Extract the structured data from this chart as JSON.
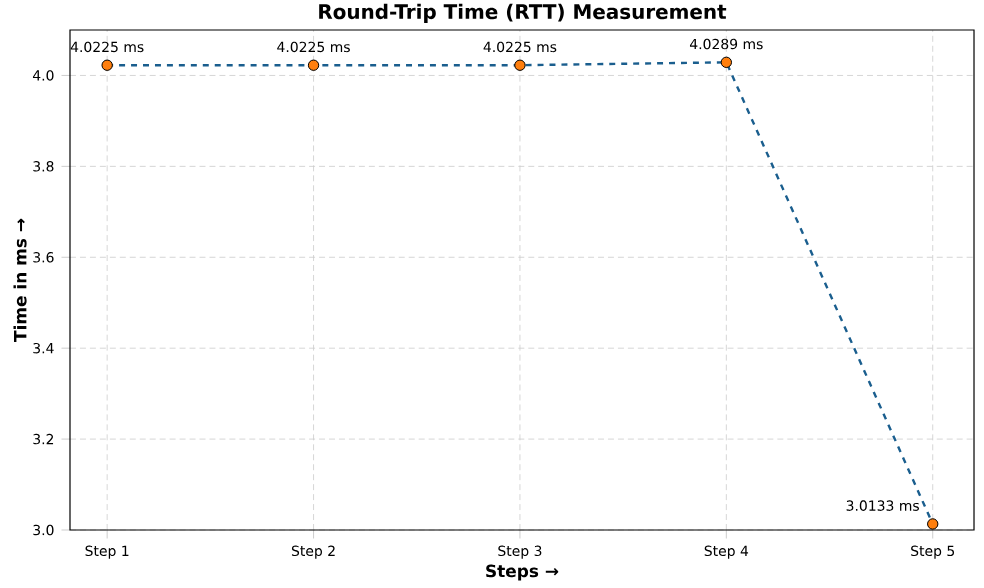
{
  "chart_data": {
    "type": "line",
    "title": "Round-Trip Time (RTT) Measurement",
    "xlabel": "Steps →",
    "ylabel": "Time in ms →",
    "categories": [
      "Step 1",
      "Step 2",
      "Step 3",
      "Step 4",
      "Step 5"
    ],
    "series": [
      {
        "color": "#1a5e8e",
        "colors": [
          "#ff7f0e",
          "#ff7f0e",
          "#ff7f0e",
          "#ff7f0e",
          "#ff7f0e"
        ],
        "values": [
          4.0225,
          4.0225,
          4.0225,
          4.0289,
          3.0133
        ],
        "value_labels": [
          "4.0225 ms",
          "4.0225 ms",
          "4.0225 ms",
          "4.0289 ms",
          "3.0133 ms"
        ]
      }
    ],
    "ylim": [
      3.0,
      4.1
    ],
    "yticks": [
      {
        "value": 3.0,
        "label": "3.0"
      },
      {
        "value": 3.2,
        "label": "3.2"
      },
      {
        "value": 3.4,
        "label": "3.4"
      },
      {
        "value": 3.6,
        "label": "3.6"
      },
      {
        "value": 3.8,
        "label": "3.8"
      },
      {
        "value": 4.0,
        "label": "4.0"
      }
    ],
    "grid": true,
    "marker": "circle",
    "line_style": "dashed"
  }
}
